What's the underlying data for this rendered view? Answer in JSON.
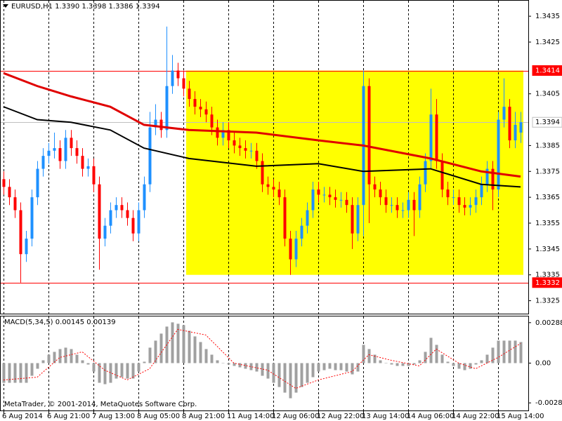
{
  "chart_data": [
    {
      "type": "candlestick",
      "title": "EURUSD,H1  1.3390 1.3398 1.3386 1.3394",
      "open": [
        1.3372,
        1.3369,
        1.3365,
        1.336,
        1.3343,
        1.3349,
        1.3365,
        1.3376,
        1.3381,
        1.3383,
        1.3384,
        1.3379,
        1.3388,
        1.3384,
        1.3381,
        1.3376,
        1.3377,
        1.337,
        1.3349,
        1.3354,
        1.336,
        1.3362,
        1.336,
        1.3357,
        1.3351,
        1.336,
        1.337,
        1.3392,
        1.3395,
        1.3391,
        1.3408,
        1.3414,
        1.3411,
        1.3407,
        1.3403,
        1.34,
        1.3399,
        1.3397,
        1.3392,
        1.3388,
        1.3391,
        1.3387,
        1.3385,
        1.3384,
        1.3383,
        1.3383,
        1.3379,
        1.337,
        1.3369,
        1.3368,
        1.3365,
        1.3349,
        1.3341,
        1.3349,
        1.3354,
        1.336,
        1.3368,
        1.3366,
        1.3366,
        1.3365,
        1.3364,
        1.3364,
        1.3362,
        1.3351,
        1.3362,
        1.3408,
        1.337,
        1.3368,
        1.3365,
        1.3362,
        1.3362,
        1.336,
        1.336,
        1.3364,
        1.336,
        1.337,
        1.3379,
        1.3397,
        1.3379,
        1.3368,
        1.3365,
        1.3365,
        1.3362,
        1.3361,
        1.3362,
        1.3365,
        1.337,
        1.3376,
        1.3368,
        1.3395,
        1.34,
        1.3387,
        1.339
      ],
      "high": [
        1.3375,
        1.3372,
        1.3368,
        1.3363,
        1.3352,
        1.3368,
        1.3379,
        1.3384,
        1.3386,
        1.339,
        1.3387,
        1.3391,
        1.3391,
        1.3387,
        1.3384,
        1.338,
        1.338,
        1.3373,
        1.3357,
        1.3363,
        1.3365,
        1.3365,
        1.3363,
        1.336,
        1.3363,
        1.3373,
        1.3398,
        1.3401,
        1.3398,
        1.3431,
        1.342,
        1.3417,
        1.3414,
        1.341,
        1.3406,
        1.3403,
        1.3402,
        1.34,
        1.3395,
        1.3394,
        1.3394,
        1.339,
        1.3388,
        1.3387,
        1.3386,
        1.3386,
        1.3382,
        1.3373,
        1.3372,
        1.3371,
        1.3368,
        1.3352,
        1.3352,
        1.3357,
        1.3363,
        1.3371,
        1.3371,
        1.3369,
        1.3369,
        1.3368,
        1.3367,
        1.3367,
        1.3365,
        1.3365,
        1.3414,
        1.3411,
        1.3373,
        1.3371,
        1.3368,
        1.3365,
        1.3365,
        1.3363,
        1.3367,
        1.3367,
        1.3373,
        1.3382,
        1.3407,
        1.3403,
        1.3382,
        1.3371,
        1.3368,
        1.3368,
        1.3365,
        1.3365,
        1.3368,
        1.3373,
        1.3379,
        1.3379,
        1.3398,
        1.3411,
        1.3403,
        1.3398,
        1.3398
      ],
      "low": [
        1.3366,
        1.3362,
        1.3357,
        1.3332,
        1.334,
        1.3346,
        1.3362,
        1.3373,
        1.3378,
        1.338,
        1.3376,
        1.3376,
        1.3381,
        1.3378,
        1.3373,
        1.3373,
        1.3367,
        1.3337,
        1.3346,
        1.3351,
        1.3357,
        1.3357,
        1.3354,
        1.3348,
        1.3348,
        1.3357,
        1.3367,
        1.3389,
        1.3388,
        1.3388,
        1.3405,
        1.3408,
        1.3404,
        1.34,
        1.3397,
        1.3396,
        1.3394,
        1.3389,
        1.3385,
        1.3385,
        1.3384,
        1.3382,
        1.3381,
        1.338,
        1.338,
        1.3376,
        1.3367,
        1.3366,
        1.3365,
        1.3362,
        1.3346,
        1.3335,
        1.3338,
        1.3346,
        1.3351,
        1.3357,
        1.3363,
        1.3363,
        1.3362,
        1.3361,
        1.3361,
        1.3359,
        1.3345,
        1.3348,
        1.335,
        1.3355,
        1.3365,
        1.3362,
        1.3359,
        1.3359,
        1.3357,
        1.3357,
        1.3357,
        1.335,
        1.3357,
        1.3367,
        1.3376,
        1.3376,
        1.3365,
        1.3362,
        1.3362,
        1.3359,
        1.3358,
        1.3358,
        1.3359,
        1.3362,
        1.3367,
        1.336,
        1.3365,
        1.3392,
        1.3384,
        1.3384,
        1.3386
      ],
      "close": [
        1.3369,
        1.3365,
        1.336,
        1.3343,
        1.3349,
        1.3365,
        1.3376,
        1.3381,
        1.3383,
        1.3384,
        1.3379,
        1.3388,
        1.3384,
        1.3381,
        1.3376,
        1.3377,
        1.337,
        1.3349,
        1.3354,
        1.336,
        1.3362,
        1.336,
        1.3357,
        1.3351,
        1.336,
        1.337,
        1.3392,
        1.3395,
        1.3391,
        1.3408,
        1.3414,
        1.3411,
        1.3407,
        1.3403,
        1.34,
        1.3399,
        1.3397,
        1.3392,
        1.3388,
        1.3391,
        1.3387,
        1.3385,
        1.3384,
        1.3383,
        1.3383,
        1.3379,
        1.337,
        1.3369,
        1.3368,
        1.3365,
        1.3349,
        1.3341,
        1.3349,
        1.3354,
        1.336,
        1.3368,
        1.3366,
        1.3366,
        1.3365,
        1.3364,
        1.3364,
        1.3362,
        1.3351,
        1.3362,
        1.3408,
        1.337,
        1.3368,
        1.3365,
        1.3362,
        1.3362,
        1.336,
        1.336,
        1.3364,
        1.336,
        1.337,
        1.3379,
        1.3397,
        1.3379,
        1.3368,
        1.3365,
        1.3365,
        1.3362,
        1.3361,
        1.3362,
        1.3365,
        1.337,
        1.3376,
        1.3368,
        1.3395,
        1.34,
        1.3387,
        1.3393,
        1.3394
      ],
      "up_color": "#1e90ff",
      "down_color": "#ff0000",
      "ylim": [
        1.332,
        1.3441
      ],
      "yticks": [
        1.3435,
        1.3425,
        1.3405,
        1.3385,
        1.3375,
        1.3365,
        1.3355,
        1.3345,
        1.3335,
        1.3325
      ],
      "xticks": [
        {
          "value": 0,
          "label": "6 Aug 2014"
        },
        {
          "value": 8,
          "label": "6 Aug 21:00"
        },
        {
          "value": 16,
          "label": "7 Aug 13:00"
        },
        {
          "value": 24,
          "label": "8 Aug 05:00"
        },
        {
          "value": 32,
          "label": "8 Aug 21:00"
        },
        {
          "value": 40,
          "label": "11 Aug 14:00"
        },
        {
          "value": 48,
          "label": "12 Aug 06:00"
        },
        {
          "value": 56,
          "label": "12 Aug 22:00"
        },
        {
          "value": 64,
          "label": "13 Aug 14:00"
        },
        {
          "value": 72,
          "label": "14 Aug 06:00"
        },
        {
          "value": 80,
          "label": "14 Aug 22:00"
        },
        {
          "value": 88,
          "label": "15 Aug 14:00"
        }
      ],
      "grid": true,
      "lines": [
        {
          "color": "#e00000",
          "width": 3,
          "x": [
            0,
            6,
            12,
            19,
            25,
            33,
            45,
            56,
            64,
            76,
            85,
            92
          ],
          "values": [
            1.3413,
            1.3408,
            1.3404,
            1.34,
            1.3393,
            1.3391,
            1.339,
            1.3387,
            1.3385,
            1.338,
            1.3375,
            1.3373
          ]
        },
        {
          "color": "#000000",
          "width": 2,
          "x": [
            0,
            6,
            12,
            19,
            25,
            33,
            45,
            56,
            64,
            76,
            85,
            92
          ],
          "values": [
            1.34,
            1.3395,
            1.3394,
            1.3391,
            1.3384,
            1.338,
            1.3377,
            1.3378,
            1.3375,
            1.3376,
            1.337,
            1.3369
          ]
        }
      ],
      "hlines": [
        {
          "value": 1.3414,
          "color": "#ff0000",
          "box_color": "#ff0000",
          "text_color": "#ffffff"
        },
        {
          "value": 1.3394,
          "color": "#c0c0c0",
          "box_color": "#ffffff",
          "text_color": "#000000"
        },
        {
          "value": 1.3332,
          "color": "#ff0000",
          "box_color": "#ff0000",
          "text_color": "#ffffff"
        }
      ],
      "rectangle": {
        "x": [
          33,
          92
        ],
        "ylim": [
          1.3335,
          1.3414
        ],
        "color": "#ffff00"
      }
    },
    {
      "type": "macd",
      "title": "MACD(5,34,5) 0.00145 0.00139",
      "values": [
        -0.0014,
        -0.0014,
        -0.0014,
        -0.0014,
        -0.0014,
        -0.0009,
        -0.0004,
        0.0002,
        0.0006,
        0.0008,
        0.001,
        0.0011,
        0.001,
        0.0006,
        0.0002,
        -0.0001,
        -0.0006,
        -0.0014,
        -0.0015,
        -0.0014,
        -0.0011,
        -0.001,
        -0.0011,
        -0.0011,
        -0.0006,
        0.0001,
        0.0011,
        0.0016,
        0.0021,
        0.0026,
        0.0029,
        0.0028,
        0.0027,
        0.0023,
        0.0019,
        0.0015,
        0.001,
        0.0006,
        0.0002,
        0.0,
        -0.0001,
        -0.0002,
        -0.0003,
        -0.0004,
        -0.0005,
        -0.0006,
        -0.0009,
        -0.0011,
        -0.0014,
        -0.0017,
        -0.0021,
        -0.0025,
        -0.0021,
        -0.0017,
        -0.0014,
        -0.001,
        -0.0006,
        -0.0005,
        -0.0004,
        -0.0005,
        -0.0005,
        -0.0006,
        -0.0008,
        -0.0006,
        0.0013,
        0.001,
        0.0006,
        0.0002,
        0.0,
        -0.0001,
        -0.0002,
        -0.0002,
        -0.0002,
        -0.0001,
        0.0002,
        0.0008,
        0.0018,
        0.0013,
        0.0006,
        0.0001,
        -0.0002,
        -0.0004,
        -0.0005,
        -0.0004,
        -0.0001,
        0.0002,
        0.0006,
        0.0011,
        0.0016,
        0.0016,
        0.0016,
        0.0016,
        0.0015
      ],
      "color": "#a0a0a0",
      "signal": {
        "color": "#ff0000",
        "x": [
          0,
          6,
          10,
          14,
          18,
          22,
          26,
          31,
          36,
          41,
          47,
          52,
          56,
          62,
          65,
          69,
          74,
          77,
          81,
          84,
          88,
          92
        ],
        "values": [
          -0.0012,
          -0.001,
          0.0004,
          0.0008,
          -0.0005,
          -0.0012,
          -0.0004,
          0.0024,
          0.002,
          0.0,
          -0.0005,
          -0.0018,
          -0.0012,
          -0.0006,
          0.0006,
          0.0002,
          -0.0002,
          0.001,
          0.0,
          -0.0004,
          0.0004,
          0.0014
        ]
      },
      "ylim": [
        -0.00337,
        0.00332
      ],
      "yticks": [
        0.00288,
        {
          "value": 0,
          "label": "0.00"
        },
        -0.00283
      ]
    }
  ],
  "footer": "MetaTrader, © 2001-2014, MetaQuotes Software Corp."
}
